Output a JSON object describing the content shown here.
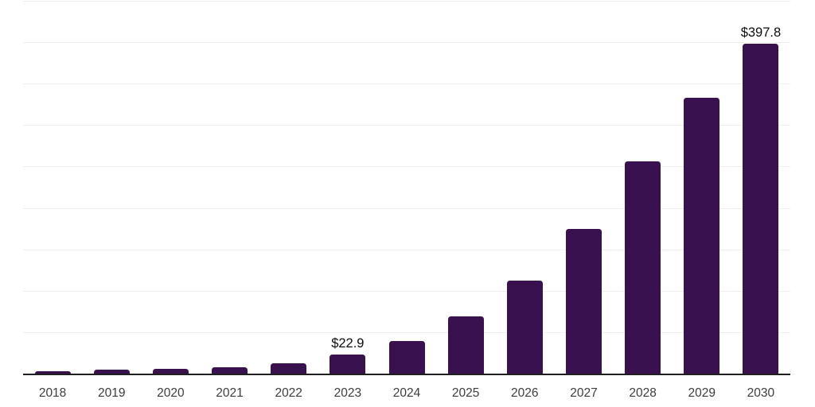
{
  "chart_data": {
    "type": "bar",
    "title": "",
    "xlabel": "",
    "ylabel": "",
    "categories": [
      "2018",
      "2019",
      "2020",
      "2021",
      "2022",
      "2023",
      "2024",
      "2025",
      "2026",
      "2027",
      "2028",
      "2029",
      "2030"
    ],
    "values": [
      2.5,
      4.5,
      5.5,
      7.5,
      12.8,
      22.9,
      39.5,
      69,
      112,
      175,
      256,
      333,
      397.8
    ],
    "point_labels": [
      {
        "category": "2023",
        "index": 5,
        "text": "$22.9"
      },
      {
        "category": "2030",
        "index": 12,
        "text": "$397.8"
      }
    ],
    "ylim": [
      0,
      450
    ],
    "gridline_step": 50,
    "grid": true,
    "legend": false,
    "y_tick_labels_shown": false,
    "colors": {
      "bar": "#39114F",
      "gridline": "#EFEFEF",
      "axis_line": "#1F1F1F",
      "x_tick_label": "#3C3C3C",
      "point_label": "#0D0D0D",
      "background": "#FFFFFF"
    }
  }
}
